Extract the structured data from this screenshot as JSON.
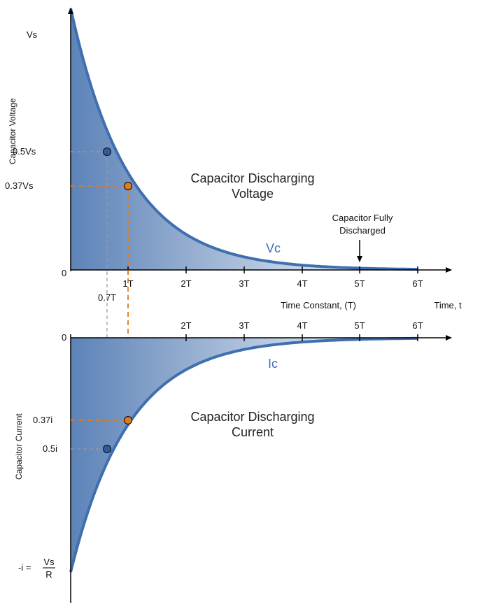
{
  "colors": {
    "curve": "#3e6fb0",
    "fill_dark": "#5d83b8",
    "fill_light": "#ffffff",
    "axis": "#000000",
    "orange": "#e07a20",
    "blue_point": "#2e5a9e",
    "green_tick": "#6b8a3a",
    "grid_gray": "#9a9a9a"
  },
  "top": {
    "axis_label": "Capacitor Voltage",
    "y_vs": "Vs",
    "y_half": "0.5Vs",
    "y_037": "0.37Vs",
    "y_zero": "0",
    "title_line1": "Capacitor Discharging",
    "title_line2": "Voltage",
    "curve_label": "Vc",
    "annotation_line1": "Capacitor Fully",
    "annotation_line2": "Discharged",
    "ticks": [
      "1T",
      "2T",
      "3T",
      "4T",
      "5T",
      "6T"
    ],
    "below_tick": "0.7T",
    "x_axis_label": "Time Constant, (T)",
    "time_label": "Time, t"
  },
  "bottom": {
    "axis_label": "Capacitor Current",
    "y_zero": "0",
    "y_037": "0.37i",
    "y_half": "0.5i",
    "y_min_prefix": "-i =",
    "y_min_num": "Vs",
    "y_min_den": "R",
    "title_line1": "Capacitor Discharging",
    "title_line2": "Current",
    "curve_label": "Ic",
    "ticks": [
      "2T",
      "3T",
      "4T",
      "5T",
      "6T"
    ]
  }
}
